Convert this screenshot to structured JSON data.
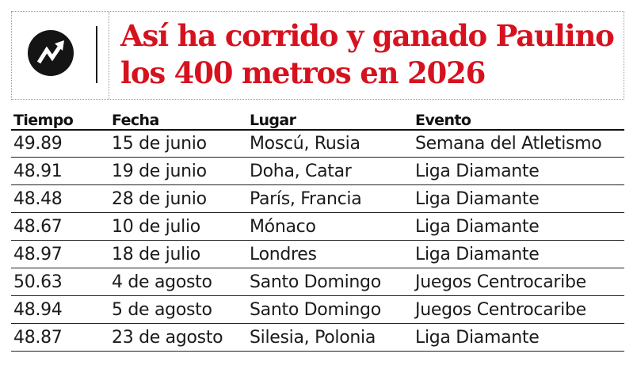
{
  "header": {
    "logo_icon": "trend-arrow-icon",
    "title_line1": "Así ha corrido y ganado Paulino",
    "title_line2": "los 400 metros en 2026",
    "title_color": "#d6121f"
  },
  "table": {
    "columns": [
      "Tiempo",
      "Fecha",
      "Lugar",
      "Evento"
    ],
    "rows": [
      {
        "tiempo": "49.89",
        "fecha": "15 de junio",
        "lugar": "Moscú, Rusia",
        "evento": "Semana del Atletismo"
      },
      {
        "tiempo": "48.91",
        "fecha": "19 de junio",
        "lugar": "Doha, Catar",
        "evento": "Liga Diamante"
      },
      {
        "tiempo": "48.48",
        "fecha": "28 de junio",
        "lugar": "París, Francia",
        "evento": "Liga Diamante"
      },
      {
        "tiempo": "48.67",
        "fecha": "10 de julio",
        "lugar": "Mónaco",
        "evento": "Liga Diamante"
      },
      {
        "tiempo": "48.97",
        "fecha": "18 de julio",
        "lugar": "Londres",
        "evento": "Liga Diamante"
      },
      {
        "tiempo": "50.63",
        "fecha": "4 de agosto",
        "lugar": "Santo Domingo",
        "evento": "Juegos Centrocaribe"
      },
      {
        "tiempo": "48.94",
        "fecha": "5 de agosto",
        "lugar": "Santo Domingo",
        "evento": "Juegos Centrocaribe"
      },
      {
        "tiempo": "48.87",
        "fecha": "23 de agosto",
        "lugar": "Silesia, Polonia",
        "evento": "Liga Diamante"
      }
    ]
  }
}
